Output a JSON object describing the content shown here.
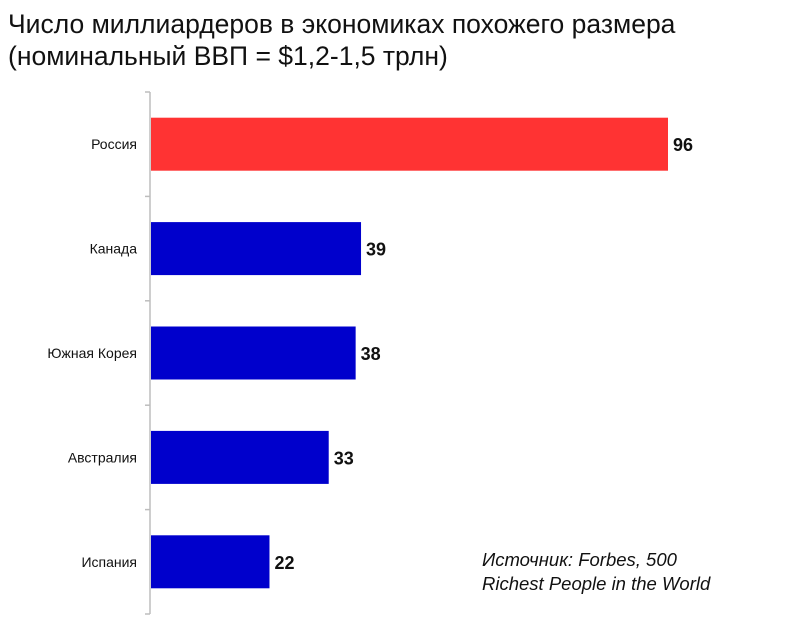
{
  "chart_data": {
    "type": "bar",
    "orientation": "horizontal",
    "title_lines": [
      "Число миллиардеров в экономиках похожего размера",
      "(номинальный ВВП = $1,2-1,5 трлн)"
    ],
    "categories": [
      "Россия",
      "Канада",
      "Южная Корея",
      "Австралия",
      "Испания"
    ],
    "values": [
      96,
      39,
      38,
      33,
      22
    ],
    "value_labels": [
      "96",
      "39",
      "38",
      "33",
      "22"
    ],
    "bar_colors": [
      "#ff3333",
      "#0000cc",
      "#0000cc",
      "#0000cc",
      "#0000cc"
    ],
    "xlim": [
      0,
      100
    ],
    "grid": false,
    "note_lines": [
      "Источник: Forbes, 500",
      "Richest People in the World"
    ]
  }
}
